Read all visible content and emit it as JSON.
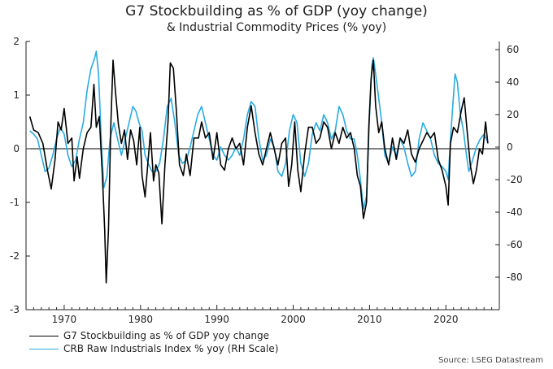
{
  "title": "G7 Stockbuilding as % of GDP (yoy change)",
  "subtitle": "& Industrial Commodity Prices (% yoy)",
  "source": "Source: LSEG Datastream",
  "colors": {
    "series1": "#000000",
    "series2": "#29abe2",
    "axis": "#222222",
    "zero_line": "#000000"
  },
  "chart_data": {
    "type": "line",
    "title": "G7 Stockbuilding as % of GDP (yoy change)",
    "subtitle": "& Industrial Commodity Prices (% yoy)",
    "xlim": [
      1965,
      2027
    ],
    "x_ticks": [
      "1970",
      "1980",
      "1990",
      "2000",
      "2010",
      "2020"
    ],
    "ylim_left": [
      -3,
      2
    ],
    "y_ticks_left": [
      "2",
      "1",
      "0",
      "-1",
      "-2",
      "-3"
    ],
    "ylim_right": [
      -100,
      65
    ],
    "y_ticks_right": [
      "60",
      "40",
      "20",
      "0",
      "-20",
      "-40",
      "-60",
      "-80"
    ],
    "grid": false,
    "legend_position": "bottom-left",
    "series": [
      {
        "name": "G7 Stockbuilding as % of GDP yoy change",
        "axis": "left",
        "color": "#000000",
        "points": [
          [
            1965.5,
            0.6
          ],
          [
            1966,
            0.35
          ],
          [
            1966.6,
            0.3
          ],
          [
            1967.2,
            0.1
          ],
          [
            1967.8,
            -0.4
          ],
          [
            1968.3,
            -0.75
          ],
          [
            1968.8,
            -0.2
          ],
          [
            1969.2,
            0.5
          ],
          [
            1969.6,
            0.35
          ],
          [
            1970,
            0.75
          ],
          [
            1970.5,
            0.1
          ],
          [
            1971,
            0.2
          ],
          [
            1971.3,
            -0.6
          ],
          [
            1971.7,
            -0.15
          ],
          [
            1972,
            -0.55
          ],
          [
            1972.5,
            0.0
          ],
          [
            1973,
            0.3
          ],
          [
            1973.5,
            0.4
          ],
          [
            1973.9,
            1.2
          ],
          [
            1974.2,
            0.4
          ],
          [
            1974.6,
            0.6
          ],
          [
            1975,
            -0.5
          ],
          [
            1975.3,
            -1.5
          ],
          [
            1975.5,
            -2.5
          ],
          [
            1975.8,
            -1.5
          ],
          [
            1976.1,
            0.4
          ],
          [
            1976.4,
            1.65
          ],
          [
            1976.7,
            1.1
          ],
          [
            1977.1,
            0.45
          ],
          [
            1977.5,
            0.1
          ],
          [
            1977.9,
            0.35
          ],
          [
            1978.3,
            -0.2
          ],
          [
            1978.7,
            0.35
          ],
          [
            1979.1,
            0.15
          ],
          [
            1979.5,
            -0.3
          ],
          [
            1979.9,
            0.4
          ],
          [
            1980.2,
            -0.5
          ],
          [
            1980.6,
            -0.9
          ],
          [
            1981,
            -0.2
          ],
          [
            1981.3,
            0.3
          ],
          [
            1981.7,
            -0.6
          ],
          [
            1982,
            -0.3
          ],
          [
            1982.4,
            -0.45
          ],
          [
            1982.8,
            -1.4
          ],
          [
            1983.2,
            -0.3
          ],
          [
            1983.6,
            0.5
          ],
          [
            1983.9,
            1.6
          ],
          [
            1984.3,
            1.5
          ],
          [
            1984.7,
            0.7
          ],
          [
            1985.1,
            -0.3
          ],
          [
            1985.6,
            -0.5
          ],
          [
            1986,
            -0.1
          ],
          [
            1986.5,
            -0.5
          ],
          [
            1987,
            0.2
          ],
          [
            1987.6,
            0.2
          ],
          [
            1988,
            0.5
          ],
          [
            1988.5,
            0.2
          ],
          [
            1989,
            0.3
          ],
          [
            1989.5,
            -0.2
          ],
          [
            1990,
            0.3
          ],
          [
            1990.5,
            -0.3
          ],
          [
            1991,
            -0.4
          ],
          [
            1991.5,
            0.0
          ],
          [
            1992,
            0.2
          ],
          [
            1992.5,
            0.0
          ],
          [
            1993,
            0.1
          ],
          [
            1993.5,
            -0.3
          ],
          [
            1994,
            0.4
          ],
          [
            1994.5,
            0.8
          ],
          [
            1995,
            0.3
          ],
          [
            1995.5,
            -0.1
          ],
          [
            1996,
            -0.3
          ],
          [
            1996.5,
            0.0
          ],
          [
            1997,
            0.3
          ],
          [
            1997.5,
            0.0
          ],
          [
            1998,
            -0.3
          ],
          [
            1998.5,
            0.1
          ],
          [
            1999,
            0.2
          ],
          [
            1999.4,
            -0.7
          ],
          [
            1999.8,
            -0.3
          ],
          [
            2000.2,
            0.5
          ],
          [
            2000.6,
            -0.4
          ],
          [
            2001,
            -0.8
          ],
          [
            2001.5,
            -0.1
          ],
          [
            2002,
            0.4
          ],
          [
            2002.5,
            0.4
          ],
          [
            2003,
            0.1
          ],
          [
            2003.5,
            0.2
          ],
          [
            2004,
            0.5
          ],
          [
            2004.5,
            0.4
          ],
          [
            2005,
            0.0
          ],
          [
            2005.5,
            0.3
          ],
          [
            2006,
            0.1
          ],
          [
            2006.5,
            0.4
          ],
          [
            2007,
            0.2
          ],
          [
            2007.5,
            0.3
          ],
          [
            2008,
            0.0
          ],
          [
            2008.4,
            -0.5
          ],
          [
            2008.8,
            -0.7
          ],
          [
            2009.2,
            -1.3
          ],
          [
            2009.6,
            -1.0
          ],
          [
            2009.9,
            0.4
          ],
          [
            2010.2,
            1.3
          ],
          [
            2010.5,
            1.65
          ],
          [
            2010.8,
            0.8
          ],
          [
            2011.2,
            0.3
          ],
          [
            2011.6,
            0.5
          ],
          [
            2012,
            0.0
          ],
          [
            2012.5,
            -0.3
          ],
          [
            2013,
            0.2
          ],
          [
            2013.5,
            -0.2
          ],
          [
            2014,
            0.2
          ],
          [
            2014.5,
            0.1
          ],
          [
            2015,
            0.35
          ],
          [
            2015.5,
            -0.1
          ],
          [
            2016,
            -0.25
          ],
          [
            2016.5,
            0.0
          ],
          [
            2017,
            0.15
          ],
          [
            2017.5,
            0.3
          ],
          [
            2018,
            0.2
          ],
          [
            2018.5,
            0.3
          ],
          [
            2019,
            -0.2
          ],
          [
            2019.5,
            -0.4
          ],
          [
            2020,
            -0.7
          ],
          [
            2020.3,
            -1.05
          ],
          [
            2020.6,
            0.1
          ],
          [
            2021,
            0.4
          ],
          [
            2021.5,
            0.3
          ],
          [
            2022,
            0.7
          ],
          [
            2022.4,
            0.95
          ],
          [
            2022.8,
            0.3
          ],
          [
            2023.2,
            -0.3
          ],
          [
            2023.6,
            -0.65
          ],
          [
            2024,
            -0.4
          ],
          [
            2024.4,
            0.0
          ],
          [
            2024.8,
            -0.1
          ],
          [
            2025.2,
            0.5
          ],
          [
            2025.5,
            0.1
          ]
        ]
      },
      {
        "name": "CRB Raw Industrials Index % yoy (RH Scale)",
        "axis": "right",
        "color": "#29abe2",
        "points": [
          [
            1965.5,
            10
          ],
          [
            1966,
            8
          ],
          [
            1966.5,
            5
          ],
          [
            1967,
            -5
          ],
          [
            1967.5,
            -15
          ],
          [
            1968,
            -13
          ],
          [
            1968.5,
            -5
          ],
          [
            1969,
            5
          ],
          [
            1969.5,
            12
          ],
          [
            1970,
            8
          ],
          [
            1970.5,
            -5
          ],
          [
            1971,
            -12
          ],
          [
            1971.5,
            -8
          ],
          [
            1972,
            5
          ],
          [
            1972.5,
            15
          ],
          [
            1973,
            35
          ],
          [
            1973.5,
            48
          ],
          [
            1974,
            55
          ],
          [
            1974.2,
            59
          ],
          [
            1974.5,
            45
          ],
          [
            1974.9,
            0
          ],
          [
            1975.2,
            -25
          ],
          [
            1975.6,
            -18
          ],
          [
            1976,
            5
          ],
          [
            1976.5,
            15
          ],
          [
            1977,
            5
          ],
          [
            1977.5,
            -5
          ],
          [
            1978,
            5
          ],
          [
            1978.5,
            15
          ],
          [
            1979,
            25
          ],
          [
            1979.4,
            22
          ],
          [
            1979.8,
            15
          ],
          [
            1980.2,
            10
          ],
          [
            1980.6,
            -5
          ],
          [
            1981,
            -10
          ],
          [
            1981.5,
            -15
          ],
          [
            1982,
            -15
          ],
          [
            1982.5,
            -10
          ],
          [
            1983,
            5
          ],
          [
            1983.5,
            25
          ],
          [
            1984,
            30
          ],
          [
            1984.5,
            15
          ],
          [
            1985,
            -5
          ],
          [
            1985.5,
            -10
          ],
          [
            1986,
            -8
          ],
          [
            1986.5,
            0
          ],
          [
            1987,
            10
          ],
          [
            1987.5,
            20
          ],
          [
            1988,
            25
          ],
          [
            1988.5,
            15
          ],
          [
            1989,
            5
          ],
          [
            1989.5,
            -5
          ],
          [
            1990,
            -8
          ],
          [
            1990.5,
            0
          ],
          [
            1991,
            -5
          ],
          [
            1991.5,
            -8
          ],
          [
            1992,
            -5
          ],
          [
            1992.5,
            0
          ],
          [
            1993,
            -5
          ],
          [
            1993.5,
            5
          ],
          [
            1994,
            20
          ],
          [
            1994.5,
            28
          ],
          [
            1995,
            25
          ],
          [
            1995.5,
            5
          ],
          [
            1996,
            -8
          ],
          [
            1996.5,
            -5
          ],
          [
            1997,
            5
          ],
          [
            1997.5,
            0
          ],
          [
            1998,
            -15
          ],
          [
            1998.5,
            -18
          ],
          [
            1999,
            -10
          ],
          [
            1999.5,
            10
          ],
          [
            2000,
            20
          ],
          [
            2000.5,
            15
          ],
          [
            2001,
            -10
          ],
          [
            2001.5,
            -18
          ],
          [
            2002,
            -10
          ],
          [
            2002.5,
            8
          ],
          [
            2003,
            15
          ],
          [
            2003.5,
            10
          ],
          [
            2004,
            20
          ],
          [
            2004.5,
            15
          ],
          [
            2005,
            5
          ],
          [
            2005.5,
            10
          ],
          [
            2006,
            25
          ],
          [
            2006.5,
            20
          ],
          [
            2007,
            10
          ],
          [
            2007.5,
            5
          ],
          [
            2008,
            5
          ],
          [
            2008.4,
            -5
          ],
          [
            2008.8,
            -20
          ],
          [
            2009.2,
            -38
          ],
          [
            2009.6,
            -30
          ],
          [
            2010,
            20
          ],
          [
            2010.3,
            50
          ],
          [
            2010.5,
            55
          ],
          [
            2010.8,
            45
          ],
          [
            2011.2,
            30
          ],
          [
            2011.6,
            15
          ],
          [
            2012,
            -5
          ],
          [
            2012.5,
            -10
          ],
          [
            2013,
            0
          ],
          [
            2013.5,
            -5
          ],
          [
            2014,
            5
          ],
          [
            2014.5,
            0
          ],
          [
            2015,
            -10
          ],
          [
            2015.5,
            -18
          ],
          [
            2016,
            -15
          ],
          [
            2016.5,
            5
          ],
          [
            2017,
            15
          ],
          [
            2017.5,
            10
          ],
          [
            2018,
            5
          ],
          [
            2018.5,
            -5
          ],
          [
            2019,
            -10
          ],
          [
            2019.5,
            -12
          ],
          [
            2020,
            -15
          ],
          [
            2020.3,
            -20
          ],
          [
            2020.6,
            5
          ],
          [
            2020.9,
            25
          ],
          [
            2021.2,
            45
          ],
          [
            2021.5,
            40
          ],
          [
            2021.9,
            20
          ],
          [
            2022.3,
            10
          ],
          [
            2022.7,
            -5
          ],
          [
            2023,
            -15
          ],
          [
            2023.5,
            -8
          ],
          [
            2024,
            0
          ],
          [
            2024.5,
            5
          ],
          [
            2025,
            8
          ],
          [
            2025.5,
            3
          ]
        ]
      }
    ]
  }
}
